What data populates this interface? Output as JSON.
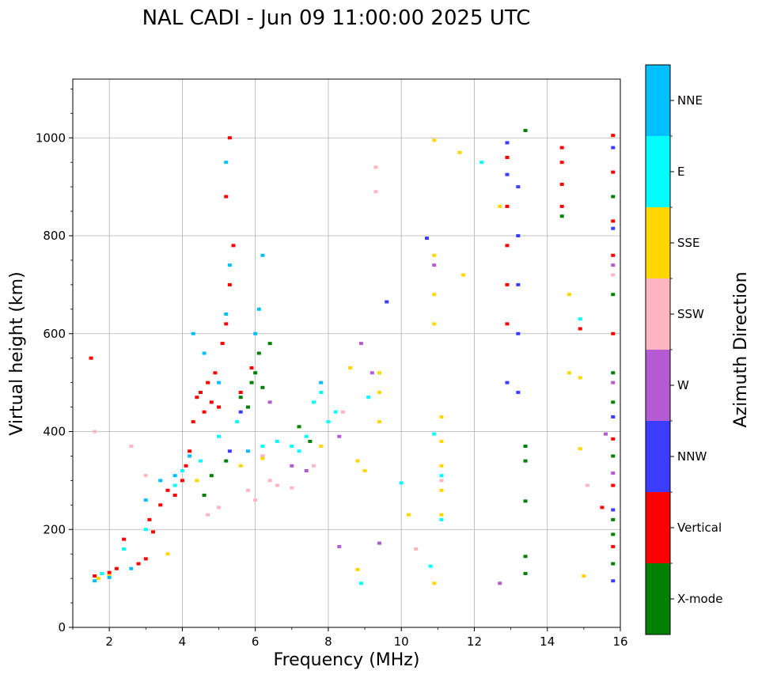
{
  "chart_data": {
    "type": "scatter",
    "title": "NAL CADI - Jun 09 11:00:00 2025 UTC",
    "xlabel": "Frequency (MHz)",
    "ylabel": "Virtual height (km)",
    "xlim": [
      1,
      16
    ],
    "ylim": [
      0,
      1120
    ],
    "xticks": [
      2,
      4,
      6,
      8,
      10,
      12,
      14,
      16
    ],
    "yticks": [
      0,
      200,
      400,
      600,
      800,
      1000
    ],
    "grid": true,
    "colorbar": {
      "label": "Azimuth Direction",
      "categories": [
        {
          "name": "X-mode",
          "color": "#008000"
        },
        {
          "name": "Vertical",
          "color": "#ff0000"
        },
        {
          "name": "NNW",
          "color": "#3c3cff"
        },
        {
          "name": "W",
          "color": "#b45ad2"
        },
        {
          "name": "SSW",
          "color": "#ffb6c1"
        },
        {
          "name": "SSE",
          "color": "#ffd700"
        },
        {
          "name": "E",
          "color": "#00ffff"
        },
        {
          "name": "NNE",
          "color": "#00bfff"
        }
      ]
    },
    "series": [
      {
        "name": "X-mode",
        "points": [
          [
            4.6,
            270
          ],
          [
            4.8,
            310
          ],
          [
            5.2,
            340
          ],
          [
            5.6,
            470
          ],
          [
            5.8,
            450
          ],
          [
            5.9,
            500
          ],
          [
            6.0,
            520
          ],
          [
            6.1,
            560
          ],
          [
            6.2,
            490
          ],
          [
            6.4,
            580
          ],
          [
            7.2,
            410
          ],
          [
            7.5,
            380
          ],
          [
            13.4,
            1015
          ],
          [
            13.4,
            370
          ],
          [
            13.4,
            340
          ],
          [
            13.4,
            258
          ],
          [
            13.4,
            145
          ],
          [
            13.4,
            110
          ],
          [
            14.4,
            840
          ],
          [
            15.8,
            880
          ],
          [
            15.8,
            680
          ],
          [
            15.8,
            520
          ],
          [
            15.8,
            460
          ],
          [
            15.8,
            350
          ],
          [
            15.8,
            220
          ],
          [
            15.8,
            190
          ],
          [
            15.8,
            130
          ]
        ]
      },
      {
        "name": "Vertical",
        "points": [
          [
            1.5,
            550
          ],
          [
            1.6,
            105
          ],
          [
            1.8,
            110
          ],
          [
            2.0,
            112
          ],
          [
            2.2,
            120
          ],
          [
            2.4,
            180
          ],
          [
            2.8,
            130
          ],
          [
            3.0,
            140
          ],
          [
            3.1,
            220
          ],
          [
            3.2,
            195
          ],
          [
            3.4,
            250
          ],
          [
            3.6,
            280
          ],
          [
            3.8,
            270
          ],
          [
            4.0,
            300
          ],
          [
            4.1,
            330
          ],
          [
            4.2,
            360
          ],
          [
            4.3,
            420
          ],
          [
            4.4,
            470
          ],
          [
            4.5,
            480
          ],
          [
            4.6,
            440
          ],
          [
            4.7,
            500
          ],
          [
            4.8,
            460
          ],
          [
            4.9,
            520
          ],
          [
            5.0,
            450
          ],
          [
            5.1,
            580
          ],
          [
            5.2,
            620
          ],
          [
            5.3,
            700
          ],
          [
            5.4,
            780
          ],
          [
            5.2,
            880
          ],
          [
            5.3,
            1000
          ],
          [
            5.6,
            480
          ],
          [
            5.9,
            530
          ],
          [
            6.2,
            350
          ],
          [
            12.9,
            960
          ],
          [
            12.9,
            860
          ],
          [
            12.9,
            780
          ],
          [
            12.9,
            700
          ],
          [
            12.9,
            620
          ],
          [
            14.4,
            980
          ],
          [
            14.4,
            950
          ],
          [
            14.4,
            905
          ],
          [
            14.4,
            860
          ],
          [
            14.9,
            610
          ],
          [
            15.8,
            1005
          ],
          [
            15.8,
            930
          ],
          [
            15.8,
            830
          ],
          [
            15.8,
            760
          ],
          [
            15.8,
            600
          ],
          [
            15.8,
            385
          ],
          [
            15.8,
            290
          ],
          [
            15.8,
            165
          ],
          [
            15.5,
            245
          ]
        ]
      },
      {
        "name": "NNW",
        "points": [
          [
            5.3,
            360
          ],
          [
            5.6,
            440
          ],
          [
            12.9,
            990
          ],
          [
            12.9,
            925
          ],
          [
            12.9,
            500
          ],
          [
            13.2,
            900
          ],
          [
            13.2,
            800
          ],
          [
            13.2,
            700
          ],
          [
            13.2,
            600
          ],
          [
            9.6,
            665
          ],
          [
            10.7,
            795
          ],
          [
            15.8,
            980
          ],
          [
            15.8,
            815
          ],
          [
            15.8,
            430
          ],
          [
            15.8,
            240
          ],
          [
            15.8,
            95
          ],
          [
            13.2,
            480
          ]
        ]
      },
      {
        "name": "W",
        "points": [
          [
            6.4,
            460
          ],
          [
            7.0,
            330
          ],
          [
            7.4,
            320
          ],
          [
            8.3,
            390
          ],
          [
            8.9,
            580
          ],
          [
            9.2,
            520
          ],
          [
            8.3,
            165
          ],
          [
            9.4,
            172
          ],
          [
            10.9,
            740
          ],
          [
            15.6,
            395
          ],
          [
            15.8,
            740
          ],
          [
            15.8,
            500
          ],
          [
            15.8,
            315
          ],
          [
            12.7,
            90
          ]
        ]
      },
      {
        "name": "SSW",
        "points": [
          [
            1.6,
            400
          ],
          [
            2.6,
            370
          ],
          [
            3.0,
            310
          ],
          [
            4.7,
            230
          ],
          [
            5.0,
            245
          ],
          [
            5.8,
            280
          ],
          [
            6.0,
            260
          ],
          [
            6.2,
            350
          ],
          [
            6.4,
            300
          ],
          [
            6.6,
            290
          ],
          [
            7.0,
            285
          ],
          [
            7.6,
            330
          ],
          [
            8.4,
            440
          ],
          [
            9.3,
            890
          ],
          [
            9.3,
            940
          ],
          [
            10.4,
            160
          ],
          [
            11.1,
            300
          ],
          [
            15.1,
            290
          ],
          [
            15.8,
            720
          ]
        ]
      },
      {
        "name": "SSE",
        "points": [
          [
            1.7,
            100
          ],
          [
            2.0,
            105
          ],
          [
            3.6,
            150
          ],
          [
            4.4,
            300
          ],
          [
            5.6,
            330
          ],
          [
            6.2,
            345
          ],
          [
            7.8,
            370
          ],
          [
            8.6,
            530
          ],
          [
            8.8,
            340
          ],
          [
            9.0,
            320
          ],
          [
            9.4,
            520
          ],
          [
            9.4,
            480
          ],
          [
            9.4,
            420
          ],
          [
            10.9,
            995
          ],
          [
            10.9,
            760
          ],
          [
            10.9,
            680
          ],
          [
            10.9,
            620
          ],
          [
            11.1,
            430
          ],
          [
            11.1,
            380
          ],
          [
            11.1,
            330
          ],
          [
            11.1,
            280
          ],
          [
            11.1,
            230
          ],
          [
            11.6,
            970
          ],
          [
            11.7,
            720
          ],
          [
            12.7,
            860
          ],
          [
            14.6,
            680
          ],
          [
            14.6,
            520
          ],
          [
            14.9,
            510
          ],
          [
            14.9,
            365
          ],
          [
            15.0,
            105
          ],
          [
            8.8,
            118
          ],
          [
            10.9,
            90
          ],
          [
            10.2,
            230
          ]
        ]
      },
      {
        "name": "E",
        "points": [
          [
            1.8,
            110
          ],
          [
            2.4,
            160
          ],
          [
            3.0,
            200
          ],
          [
            3.8,
            290
          ],
          [
            4.0,
            320
          ],
          [
            4.5,
            340
          ],
          [
            5.0,
            390
          ],
          [
            5.5,
            420
          ],
          [
            6.2,
            370
          ],
          [
            6.6,
            380
          ],
          [
            7.0,
            370
          ],
          [
            7.2,
            360
          ],
          [
            7.4,
            390
          ],
          [
            7.6,
            460
          ],
          [
            7.8,
            480
          ],
          [
            8.0,
            420
          ],
          [
            8.2,
            440
          ],
          [
            9.1,
            470
          ],
          [
            10.8,
            125
          ],
          [
            11.1,
            220
          ],
          [
            11.1,
            310
          ],
          [
            10.9,
            395
          ],
          [
            12.2,
            950
          ],
          [
            14.9,
            630
          ],
          [
            8.9,
            90
          ],
          [
            10.0,
            295
          ]
        ]
      },
      {
        "name": "NNE",
        "points": [
          [
            1.6,
            95
          ],
          [
            2.0,
            102
          ],
          [
            2.6,
            120
          ],
          [
            3.0,
            260
          ],
          [
            3.4,
            300
          ],
          [
            3.8,
            310
          ],
          [
            4.2,
            350
          ],
          [
            4.3,
            600
          ],
          [
            4.6,
            560
          ],
          [
            5.0,
            500
          ],
          [
            5.2,
            640
          ],
          [
            5.3,
            740
          ],
          [
            5.2,
            950
          ],
          [
            5.8,
            360
          ],
          [
            6.0,
            600
          ],
          [
            6.1,
            650
          ],
          [
            6.2,
            760
          ],
          [
            7.8,
            500
          ]
        ]
      }
    ]
  }
}
